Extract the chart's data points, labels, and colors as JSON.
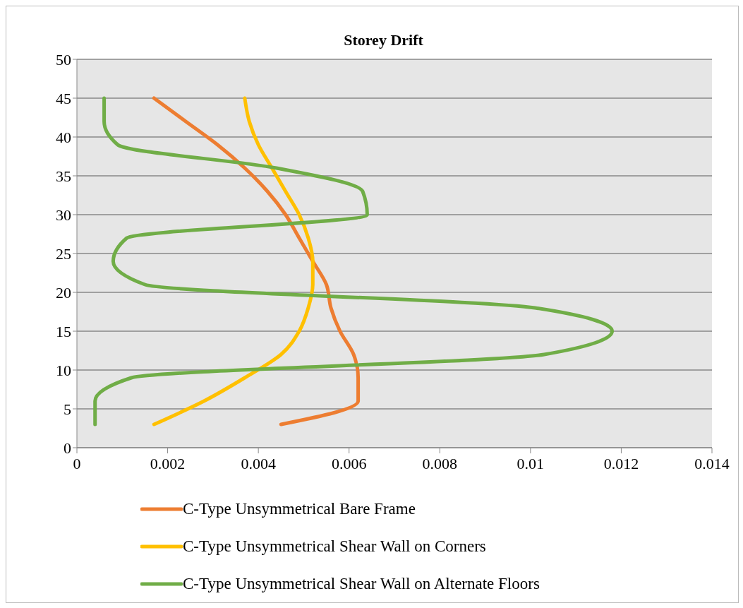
{
  "chart_data": {
    "type": "line",
    "title": "Storey Drift",
    "xlim": [
      0,
      0.014
    ],
    "xticks": [
      0,
      0.002,
      0.004,
      0.006,
      0.008,
      0.01,
      0.012,
      0.014
    ],
    "ylim": [
      0,
      50
    ],
    "yticks": [
      0,
      5,
      10,
      15,
      20,
      25,
      30,
      35,
      40,
      45,
      50
    ],
    "grid": "y",
    "legend": "bottom",
    "marker": "none",
    "line_style": "solid",
    "series": [
      {
        "name": "C-Type Unsymmetrical Bare Frame",
        "color": "#ed7d31",
        "x": [
          0.0045,
          0.0062,
          0.0062,
          0.0061,
          0.0058,
          0.0056,
          0.0055,
          0.0052,
          0.0049,
          0.0046,
          0.0042,
          0.0037,
          0.0031,
          0.0024,
          0.0017
        ],
        "values": [
          3,
          6,
          9,
          12,
          15,
          18,
          21,
          24,
          27,
          30,
          33,
          36,
          39,
          42,
          45
        ]
      },
      {
        "name": "C-Type Unsymmetrical Shear Wall on Corners",
        "color": "#ffc000",
        "x": [
          0.0017,
          0.0028,
          0.0037,
          0.0045,
          0.0049,
          0.0051,
          0.0052,
          0.0052,
          0.0051,
          0.0049,
          0.0046,
          0.0043,
          0.004,
          0.0038,
          0.0037
        ],
        "values": [
          3,
          6,
          9,
          12,
          15,
          18,
          21,
          24,
          27,
          30,
          33,
          36,
          39,
          42,
          45
        ]
      },
      {
        "name": "C-Type Unsymmetrical Shear Wall on Alternate Floors",
        "color": "#70ad47",
        "x": [
          0.0004,
          0.0004,
          0.0012,
          0.0103,
          0.0118,
          0.0101,
          0.0015,
          0.0008,
          0.0011,
          0.0064,
          0.0063,
          0.0044,
          0.0009,
          0.0006,
          0.0006
        ],
        "values": [
          3,
          6,
          9,
          12,
          15,
          18,
          21,
          24,
          27,
          30,
          33,
          36,
          39,
          42,
          45
        ]
      }
    ]
  }
}
